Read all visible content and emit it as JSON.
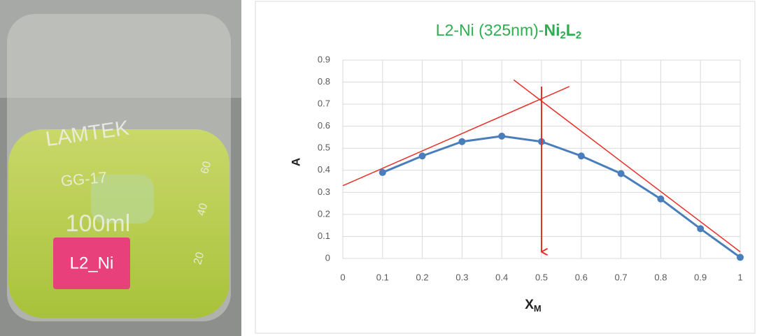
{
  "photo": {
    "label": "L2_Ni",
    "texts": [
      "LAMTEK",
      "GG-17",
      "100ml",
      "60",
      "40",
      "20"
    ]
  },
  "chart_data": {
    "type": "line",
    "title": [
      "L2-Ni (325nm)-",
      "Ni",
      "2",
      "L",
      "2"
    ],
    "x_label": [
      "X",
      "M"
    ],
    "y_label": "A",
    "x": [
      0.1,
      0.2,
      0.3,
      0.4,
      0.5,
      0.6,
      0.7,
      0.8,
      0.9,
      1
    ],
    "series": [
      {
        "color": "#4a7ebb",
        "values": [
          0.39,
          0.465,
          0.53,
          0.555,
          0.53,
          0.465,
          0.385,
          0.27,
          0.135,
          0.005
        ]
      }
    ],
    "tangents": [
      {
        "color": "#e8302a",
        "x": [
          0,
          0.57
        ],
        "y": [
          0.33,
          0.78
        ]
      },
      {
        "color": "#e8302a",
        "x": [
          0.43,
          1
        ],
        "y": [
          0.81,
          0.03
        ]
      }
    ],
    "arrow": {
      "color": "#e8302a",
      "x": 0.5,
      "y": [
        0.78,
        0.03
      ]
    },
    "xlim": [
      0,
      1
    ],
    "ylim": [
      0,
      0.9
    ],
    "xticks": [
      0,
      0.1,
      0.2,
      0.3,
      0.4,
      0.5,
      0.6,
      0.7,
      0.8,
      0.9,
      1
    ],
    "yticks": [
      0,
      0.1,
      0.2,
      0.3,
      0.4,
      0.5,
      0.6,
      0.7,
      0.8,
      0.9
    ],
    "grid": true
  }
}
